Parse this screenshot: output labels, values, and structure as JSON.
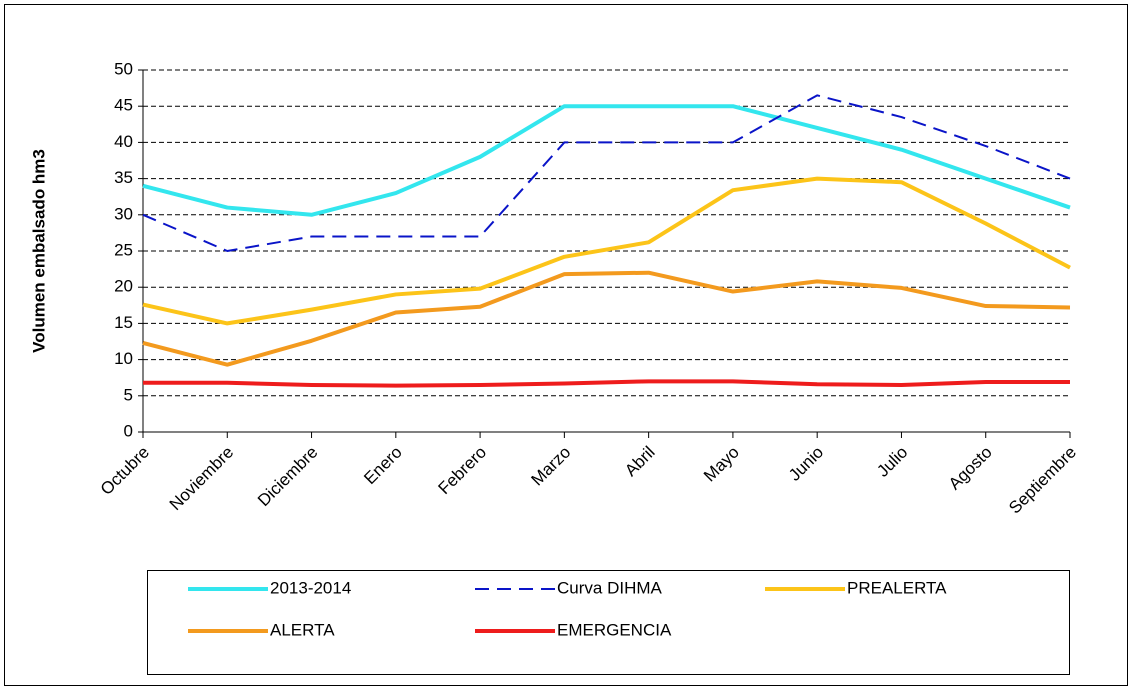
{
  "chart_data": {
    "type": "line",
    "y_axis_label": "Volumen embalsado hm3",
    "categories": [
      "Octubre",
      "Noviembre",
      "Diciembre",
      "Enero",
      "Febrero",
      "Marzo",
      "Abril",
      "Mayo",
      "Junio",
      "Julio",
      "Agosto",
      "Septiembre"
    ],
    "series": [
      {
        "name": "2013-2014",
        "color": "#33e6ee",
        "line_style": "solid",
        "values": [
          34,
          31,
          30,
          33,
          38,
          45,
          45,
          45,
          42,
          39,
          35,
          31
        ]
      },
      {
        "name": "Curva DIHMA",
        "color": "#0a14c8",
        "line_style": "dashed",
        "values": [
          30,
          25,
          27,
          27,
          27,
          40,
          40,
          40,
          46.5,
          43.5,
          39.5,
          35
        ]
      },
      {
        "name": "PREALERTA",
        "color": "#fcc419",
        "line_style": "solid",
        "values": [
          17.6,
          15,
          16.9,
          19,
          19.8,
          24.2,
          26.2,
          33.4,
          35,
          34.5,
          28.8,
          22.7
        ]
      },
      {
        "name": "ALERTA",
        "color": "#f39a1e",
        "line_style": "solid",
        "values": [
          12.3,
          9.3,
          12.6,
          16.5,
          17.3,
          21.8,
          22,
          19.4,
          20.8,
          19.9,
          17.4,
          17.2
        ]
      },
      {
        "name": "EMERGENCIA",
        "color": "#ee1c1c",
        "line_style": "solid",
        "values": [
          6.8,
          6.8,
          6.5,
          6.4,
          6.5,
          6.7,
          7.0,
          7.0,
          6.6,
          6.5,
          6.9,
          6.9
        ]
      }
    ],
    "ylim": [
      0,
      50
    ],
    "yticks": [
      0,
      5,
      10,
      15,
      20,
      25,
      30,
      35,
      40,
      45,
      50
    ],
    "grid": true,
    "legend": "bottom"
  }
}
